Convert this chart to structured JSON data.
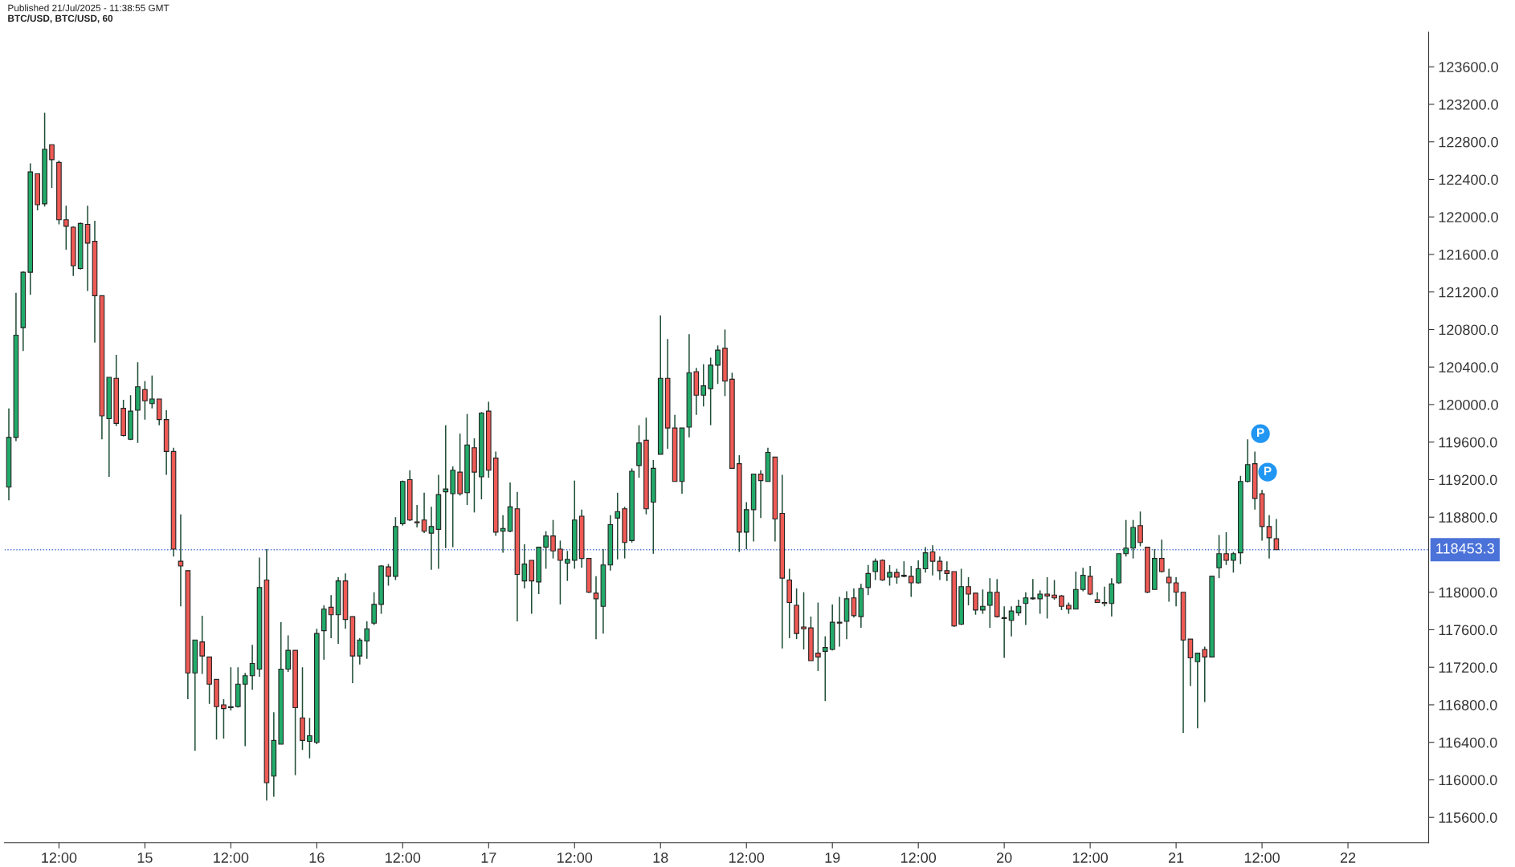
{
  "chart_data": {
    "type": "candlestick",
    "title": "BTC/USD, BTC/USD, 60",
    "annotations": [
      "Published 21/Jul/2025 - 11:38:55 GMT",
      {
        "text": "P",
        "x": "2025-07-21T11:00",
        "y": 119500
      },
      {
        "text": "P",
        "x": "2025-07-21T12:00",
        "y": 119090
      }
    ],
    "x": [
      "2025-07-14T05:00",
      "2025-07-14T06:00",
      "2025-07-14T07:00",
      "2025-07-14T08:00",
      "2025-07-14T09:00",
      "2025-07-14T10:00",
      "2025-07-14T11:00",
      "2025-07-14T12:00",
      "2025-07-14T13:00",
      "2025-07-14T14:00",
      "2025-07-14T15:00",
      "2025-07-14T16:00",
      "2025-07-14T17:00",
      "2025-07-14T18:00",
      "2025-07-14T19:00",
      "2025-07-14T20:00",
      "2025-07-14T21:00",
      "2025-07-14T22:00",
      "2025-07-14T23:00",
      "2025-07-15T00:00",
      "2025-07-15T01:00",
      "2025-07-15T02:00",
      "2025-07-15T03:00",
      "2025-07-15T04:00",
      "2025-07-15T05:00",
      "2025-07-15T06:00",
      "2025-07-15T07:00",
      "2025-07-15T08:00",
      "2025-07-15T09:00",
      "2025-07-15T10:00",
      "2025-07-15T11:00",
      "2025-07-15T12:00",
      "2025-07-15T13:00",
      "2025-07-15T14:00",
      "2025-07-15T15:00",
      "2025-07-15T16:00",
      "2025-07-15T17:00",
      "2025-07-15T18:00",
      "2025-07-15T19:00",
      "2025-07-15T20:00",
      "2025-07-15T21:00",
      "2025-07-15T22:00",
      "2025-07-15T23:00",
      "2025-07-16T00:00",
      "2025-07-16T01:00",
      "2025-07-16T02:00",
      "2025-07-16T03:00",
      "2025-07-16T04:00",
      "2025-07-16T05:00",
      "2025-07-16T06:00",
      "2025-07-16T07:00",
      "2025-07-16T08:00",
      "2025-07-16T09:00",
      "2025-07-16T10:00",
      "2025-07-16T11:00",
      "2025-07-16T12:00",
      "2025-07-16T13:00",
      "2025-07-16T14:00",
      "2025-07-16T15:00",
      "2025-07-16T16:00",
      "2025-07-16T17:00",
      "2025-07-16T18:00",
      "2025-07-16T19:00",
      "2025-07-16T20:00",
      "2025-07-16T21:00",
      "2025-07-16T22:00",
      "2025-07-16T23:00",
      "2025-07-17T00:00",
      "2025-07-17T01:00",
      "2025-07-17T02:00",
      "2025-07-17T03:00",
      "2025-07-17T04:00",
      "2025-07-17T05:00",
      "2025-07-17T06:00",
      "2025-07-17T07:00",
      "2025-07-17T08:00",
      "2025-07-17T09:00",
      "2025-07-17T10:00",
      "2025-07-17T11:00",
      "2025-07-17T12:00",
      "2025-07-17T13:00",
      "2025-07-17T14:00",
      "2025-07-17T15:00",
      "2025-07-17T16:00",
      "2025-07-17T17:00",
      "2025-07-17T18:00",
      "2025-07-17T19:00",
      "2025-07-17T20:00",
      "2025-07-17T21:00",
      "2025-07-17T22:00",
      "2025-07-17T23:00",
      "2025-07-18T00:00",
      "2025-07-18T01:00",
      "2025-07-18T02:00",
      "2025-07-18T03:00",
      "2025-07-18T04:00",
      "2025-07-18T05:00",
      "2025-07-18T06:00",
      "2025-07-18T07:00",
      "2025-07-18T08:00",
      "2025-07-18T09:00",
      "2025-07-18T10:00",
      "2025-07-18T11:00",
      "2025-07-18T12:00",
      "2025-07-18T13:00",
      "2025-07-18T14:00",
      "2025-07-18T15:00",
      "2025-07-18T16:00",
      "2025-07-18T17:00",
      "2025-07-18T18:00",
      "2025-07-18T19:00",
      "2025-07-18T20:00",
      "2025-07-18T21:00",
      "2025-07-18T22:00",
      "2025-07-18T23:00",
      "2025-07-19T00:00",
      "2025-07-19T01:00",
      "2025-07-19T02:00",
      "2025-07-19T03:00",
      "2025-07-19T04:00",
      "2025-07-19T05:00",
      "2025-07-19T06:00",
      "2025-07-19T07:00",
      "2025-07-19T08:00",
      "2025-07-19T09:00",
      "2025-07-19T10:00",
      "2025-07-19T11:00",
      "2025-07-19T12:00",
      "2025-07-19T13:00",
      "2025-07-19T14:00",
      "2025-07-19T15:00",
      "2025-07-19T16:00",
      "2025-07-19T17:00",
      "2025-07-19T18:00",
      "2025-07-19T19:00",
      "2025-07-19T20:00",
      "2025-07-19T21:00",
      "2025-07-19T22:00",
      "2025-07-19T23:00",
      "2025-07-20T00:00",
      "2025-07-20T01:00",
      "2025-07-20T02:00",
      "2025-07-20T03:00",
      "2025-07-20T04:00",
      "2025-07-20T05:00",
      "2025-07-20T06:00",
      "2025-07-20T07:00",
      "2025-07-20T08:00",
      "2025-07-20T09:00",
      "2025-07-20T10:00",
      "2025-07-20T11:00",
      "2025-07-20T12:00",
      "2025-07-20T13:00",
      "2025-07-20T14:00",
      "2025-07-20T15:00",
      "2025-07-20T16:00",
      "2025-07-20T17:00",
      "2025-07-20T18:00",
      "2025-07-20T19:00",
      "2025-07-20T20:00",
      "2025-07-20T21:00",
      "2025-07-20T22:00",
      "2025-07-20T23:00",
      "2025-07-21T00:00",
      "2025-07-21T01:00",
      "2025-07-21T02:00",
      "2025-07-21T03:00",
      "2025-07-21T04:00",
      "2025-07-21T05:00",
      "2025-07-21T06:00",
      "2025-07-21T07:00",
      "2025-07-21T08:00",
      "2025-07-21T09:00",
      "2025-07-21T10:00",
      "2025-07-21T11:00",
      "2025-07-21T12:00",
      "2025-07-21T13:00",
      "2025-07-21T14:00"
    ],
    "ohlc": [
      [
        119120,
        119960,
        118980,
        119650
      ],
      [
        119650,
        121190,
        119610,
        120740
      ],
      [
        120820,
        121420,
        120570,
        121410
      ],
      [
        121410,
        122570,
        121170,
        122480
      ],
      [
        122460,
        122460,
        122070,
        122130
      ],
      [
        122140,
        123110,
        122110,
        122720
      ],
      [
        122770,
        122770,
        122310,
        122610
      ],
      [
        122580,
        122600,
        121920,
        121970
      ],
      [
        121970,
        122120,
        121650,
        121900
      ],
      [
        121890,
        121900,
        121370,
        121480
      ],
      [
        121450,
        121940,
        121440,
        121930
      ],
      [
        121920,
        122120,
        121210,
        121720
      ],
      [
        121740,
        121960,
        120660,
        121160
      ],
      [
        121160,
        121160,
        119630,
        119880
      ],
      [
        119850,
        120290,
        119230,
        120290
      ],
      [
        120280,
        120530,
        119770,
        119800
      ],
      [
        119960,
        120050,
        119660,
        119670
      ],
      [
        119630,
        120100,
        119620,
        119930
      ],
      [
        119940,
        120450,
        119590,
        120190
      ],
      [
        120160,
        120250,
        119840,
        120040
      ],
      [
        120010,
        120310,
        119960,
        120060
      ],
      [
        120060,
        120060,
        119780,
        119840
      ],
      [
        119840,
        119940,
        119250,
        119500
      ],
      [
        119500,
        119540,
        118380,
        118460
      ],
      [
        118330,
        118830,
        117850,
        118280
      ],
      [
        118230,
        118230,
        116860,
        117140
      ],
      [
        117140,
        117490,
        116310,
        117490
      ],
      [
        117470,
        117750,
        117130,
        117320
      ],
      [
        117310,
        117310,
        116810,
        117020
      ],
      [
        117070,
        117070,
        116430,
        116780
      ],
      [
        116800,
        116860,
        116440,
        116760
      ],
      [
        116770,
        117200,
        116740,
        116780
      ],
      [
        116780,
        117200,
        116770,
        117020
      ],
      [
        117020,
        117140,
        116360,
        117110
      ],
      [
        117110,
        117440,
        116960,
        117240
      ],
      [
        117180,
        118370,
        117100,
        118050
      ],
      [
        118130,
        118460,
        115780,
        115970
      ],
      [
        116040,
        116720,
        115820,
        116420
      ],
      [
        116380,
        117680,
        116380,
        117180
      ],
      [
        117180,
        117540,
        117150,
        117380
      ],
      [
        117380,
        117380,
        116050,
        116770
      ],
      [
        116660,
        117200,
        116320,
        116420
      ],
      [
        116410,
        116660,
        116230,
        116470
      ],
      [
        116400,
        117610,
        116380,
        117560
      ],
      [
        117590,
        117860,
        117280,
        117820
      ],
      [
        117840,
        117970,
        117510,
        117760
      ],
      [
        117760,
        118160,
        117450,
        118120
      ],
      [
        118120,
        118200,
        117610,
        117710
      ],
      [
        117740,
        117740,
        117030,
        117320
      ],
      [
        117320,
        117510,
        117230,
        117490
      ],
      [
        117480,
        117690,
        117290,
        117610
      ],
      [
        117670,
        118000,
        117650,
        117870
      ],
      [
        117870,
        118290,
        117770,
        118280
      ],
      [
        118270,
        118300,
        118070,
        118170
      ],
      [
        118170,
        118800,
        118130,
        118700
      ],
      [
        118730,
        119190,
        118710,
        119180
      ],
      [
        119200,
        119300,
        118760,
        118770
      ],
      [
        118750,
        118930,
        118690,
        118740
      ],
      [
        118770,
        119060,
        118630,
        118650
      ],
      [
        118630,
        118910,
        118240,
        118700
      ],
      [
        118670,
        119250,
        118250,
        119040
      ],
      [
        119070,
        119780,
        118470,
        119100
      ],
      [
        119050,
        119340,
        118480,
        119300
      ],
      [
        119280,
        119690,
        119030,
        119050
      ],
      [
        119060,
        119900,
        118930,
        119570
      ],
      [
        119540,
        119640,
        118850,
        119280
      ],
      [
        119230,
        119920,
        118990,
        119910
      ],
      [
        119930,
        120030,
        119220,
        119300
      ],
      [
        119430,
        119500,
        118600,
        118640
      ],
      [
        118650,
        118820,
        118420,
        118680
      ],
      [
        118650,
        119170,
        118640,
        118910
      ],
      [
        118890,
        119070,
        117690,
        118190
      ],
      [
        118120,
        118510,
        118040,
        118300
      ],
      [
        118340,
        118340,
        117770,
        118120
      ],
      [
        118110,
        118480,
        117980,
        118480
      ],
      [
        118480,
        118650,
        118250,
        118600
      ],
      [
        118600,
        118770,
        118360,
        118440
      ],
      [
        118460,
        118550,
        117870,
        118340
      ],
      [
        118310,
        118440,
        118120,
        118350
      ],
      [
        118340,
        119190,
        118250,
        118770
      ],
      [
        118810,
        118880,
        118260,
        118360
      ],
      [
        118360,
        118360,
        117990,
        118000
      ],
      [
        117990,
        118170,
        117500,
        117930
      ],
      [
        117850,
        118460,
        117560,
        118290
      ],
      [
        118290,
        118820,
        118230,
        118720
      ],
      [
        118790,
        119060,
        118350,
        118860
      ],
      [
        118890,
        118910,
        118360,
        118530
      ],
      [
        118550,
        119320,
        118530,
        119290
      ],
      [
        119350,
        119780,
        119220,
        119590
      ],
      [
        119620,
        119860,
        118830,
        118890
      ],
      [
        118960,
        119410,
        118410,
        119320
      ],
      [
        119470,
        120950,
        119470,
        120280
      ],
      [
        120280,
        120700,
        119530,
        119750
      ],
      [
        119750,
        119890,
        119180,
        119180
      ],
      [
        119180,
        119750,
        119050,
        119750
      ],
      [
        119760,
        120750,
        119650,
        120340
      ],
      [
        120350,
        120390,
        119890,
        120100
      ],
      [
        120100,
        120430,
        119980,
        120200
      ],
      [
        120170,
        120500,
        119780,
        120420
      ],
      [
        120420,
        120630,
        120220,
        120580
      ],
      [
        120600,
        120800,
        120090,
        120250
      ],
      [
        120270,
        120340,
        119320,
        119320
      ],
      [
        119370,
        119460,
        118430,
        118640
      ],
      [
        118640,
        118960,
        118460,
        118880
      ],
      [
        118880,
        119260,
        118540,
        119260
      ],
      [
        119260,
        119300,
        118790,
        119190
      ],
      [
        119180,
        119540,
        119180,
        119490
      ],
      [
        119440,
        119440,
        118540,
        118780
      ],
      [
        118840,
        119250,
        117400,
        118150
      ],
      [
        118130,
        118250,
        117510,
        117890
      ],
      [
        117860,
        118040,
        117500,
        117560
      ],
      [
        117630,
        118000,
        117390,
        117610
      ],
      [
        117620,
        117740,
        117270,
        117270
      ],
      [
        117350,
        117890,
        117160,
        117310
      ],
      [
        117370,
        117530,
        116840,
        117410
      ],
      [
        117390,
        117870,
        117380,
        117680
      ],
      [
        117680,
        117950,
        117420,
        117670
      ],
      [
        117690,
        118010,
        117500,
        117930
      ],
      [
        117940,
        118040,
        117730,
        117750
      ],
      [
        117740,
        118090,
        117620,
        118040
      ],
      [
        118050,
        118290,
        117970,
        118200
      ],
      [
        118220,
        118360,
        118130,
        118330
      ],
      [
        118340,
        118350,
        118120,
        118130
      ],
      [
        118160,
        118290,
        118070,
        118210
      ],
      [
        118210,
        118250,
        118090,
        118160
      ],
      [
        118180,
        118330,
        118160,
        118170
      ],
      [
        118170,
        118280,
        117950,
        118100
      ],
      [
        118100,
        118340,
        118090,
        118250
      ],
      [
        118250,
        118480,
        118210,
        118420
      ],
      [
        118430,
        118500,
        118180,
        118330
      ],
      [
        118330,
        118380,
        118130,
        118230
      ],
      [
        118230,
        118330,
        118120,
        118200
      ],
      [
        118220,
        118220,
        117630,
        117640
      ],
      [
        117660,
        118250,
        117650,
        118060
      ],
      [
        118060,
        118160,
        117860,
        117980
      ],
      [
        117990,
        117990,
        117760,
        117810
      ],
      [
        117810,
        118030,
        117770,
        117850
      ],
      [
        117860,
        118150,
        117620,
        118000
      ],
      [
        118000,
        118140,
        117730,
        117740
      ],
      [
        117730,
        117850,
        117300,
        117720
      ],
      [
        117700,
        117850,
        117530,
        117800
      ],
      [
        117780,
        117920,
        117750,
        117850
      ],
      [
        117880,
        118000,
        117650,
        117940
      ],
      [
        117930,
        118140,
        117920,
        117940
      ],
      [
        117930,
        118020,
        117770,
        117980
      ],
      [
        117980,
        118160,
        117720,
        117960
      ],
      [
        117970,
        118130,
        117920,
        117940
      ],
      [
        117960,
        117970,
        117810,
        117850
      ],
      [
        117860,
        117890,
        117770,
        117820
      ],
      [
        117820,
        118220,
        117820,
        118030
      ],
      [
        118030,
        118260,
        118010,
        118180
      ],
      [
        118170,
        118280,
        117970,
        117980
      ],
      [
        117920,
        118000,
        117890,
        117890
      ],
      [
        117890,
        118060,
        117850,
        117880
      ],
      [
        117880,
        118150,
        117740,
        118090
      ],
      [
        118100,
        118410,
        118090,
        118410
      ],
      [
        118410,
        118770,
        118380,
        118470
      ],
      [
        118470,
        118770,
        118360,
        118690
      ],
      [
        118710,
        118860,
        118490,
        118530
      ],
      [
        118480,
        118480,
        117990,
        118000
      ],
      [
        118030,
        118460,
        118030,
        118360
      ],
      [
        118360,
        118560,
        118210,
        118220
      ],
      [
        118160,
        118250,
        117900,
        118100
      ],
      [
        118100,
        118160,
        117850,
        118000
      ],
      [
        118000,
        118000,
        116500,
        117490
      ],
      [
        117500,
        117500,
        117000,
        117300
      ],
      [
        117260,
        117350,
        116550,
        117350
      ],
      [
        117390,
        117420,
        116830,
        117310
      ],
      [
        117310,
        118170,
        117310,
        118170
      ],
      [
        118260,
        118610,
        118150,
        118410
      ],
      [
        118410,
        118640,
        118290,
        118340
      ],
      [
        118340,
        118430,
        118210,
        118410
      ],
      [
        118420,
        119240,
        118300,
        119180
      ],
      [
        119180,
        119630,
        119170,
        119360
      ],
      [
        119370,
        119500,
        118880,
        119000
      ],
      [
        119050,
        119090,
        118550,
        118700
      ],
      [
        118700,
        118820,
        118360,
        118580
      ],
      [
        118570,
        118780,
        118453.3,
        118453.3
      ]
    ],
    "colors": [
      "#22ab6a",
      "#22ab6a",
      "#22ab6a",
      "#22ab6a",
      "#ef5a55",
      "#22ab6a",
      "#ef5a55",
      "#ef5a55",
      "#ef5a55",
      "#ef5a55",
      "#22ab6a",
      "#ef5a55",
      "#ef5a55",
      "#ef5a55",
      "#22ab6a",
      "#ef5a55",
      "#ef5a55",
      "#22ab6a",
      "#22ab6a",
      "#ef5a55",
      "#22ab6a",
      "#ef5a55",
      "#ef5a55",
      "#ef5a55",
      "#ef5a55",
      "#ef5a55",
      "#22ab6a",
      "#ef5a55",
      "#ef5a55",
      "#ef5a55",
      "#ef5a55",
      "#22ab6a",
      "#22ab6a",
      "#22ab6a",
      "#22ab6a",
      "#22ab6a",
      "#ef5a55",
      "#22ab6a",
      "#22ab6a",
      "#22ab6a",
      "#ef5a55",
      "#ef5a55",
      "#22ab6a",
      "#22ab6a",
      "#22ab6a",
      "#ef5a55",
      "#22ab6a",
      "#ef5a55",
      "#ef5a55",
      "#22ab6a",
      "#22ab6a",
      "#22ab6a",
      "#22ab6a",
      "#ef5a55",
      "#22ab6a",
      "#22ab6a",
      "#ef5a55",
      "#ef5a55",
      "#ef5a55",
      "#22ab6a",
      "#22ab6a",
      "#22ab6a",
      "#22ab6a",
      "#ef5a55",
      "#22ab6a",
      "#ef5a55",
      "#22ab6a",
      "#ef5a55",
      "#ef5a55",
      "#22ab6a",
      "#22ab6a",
      "#ef5a55",
      "#22ab6a",
      "#ef5a55",
      "#22ab6a",
      "#22ab6a",
      "#ef5a55",
      "#ef5a55",
      "#22ab6a",
      "#22ab6a",
      "#ef5a55",
      "#ef5a55",
      "#ef5a55",
      "#22ab6a",
      "#22ab6a",
      "#22ab6a",
      "#ef5a55",
      "#22ab6a",
      "#22ab6a",
      "#ef5a55",
      "#22ab6a",
      "#22ab6a",
      "#ef5a55",
      "#ef5a55",
      "#22ab6a",
      "#22ab6a",
      "#ef5a55",
      "#22ab6a",
      "#22ab6a",
      "#22ab6a",
      "#ef5a55",
      "#ef5a55",
      "#ef5a55",
      "#22ab6a",
      "#22ab6a",
      "#ef5a55",
      "#22ab6a",
      "#ef5a55",
      "#ef5a55",
      "#ef5a55",
      "#ef5a55",
      "#ef5a55",
      "#ef5a55",
      "#ef5a55",
      "#22ab6a",
      "#22ab6a",
      "#ef5a55",
      "#22ab6a",
      "#ef5a55",
      "#22ab6a",
      "#22ab6a",
      "#22ab6a",
      "#ef5a55",
      "#22ab6a",
      "#ef5a55",
      "#ef5a55",
      "#ef5a55",
      "#22ab6a",
      "#22ab6a",
      "#ef5a55",
      "#ef5a55",
      "#ef5a55",
      "#ef5a55",
      "#22ab6a",
      "#ef5a55",
      "#ef5a55",
      "#22ab6a",
      "#22ab6a",
      "#ef5a55",
      "#ef5a55",
      "#22ab6a",
      "#22ab6a",
      "#22ab6a",
      "#22ab6a",
      "#22ab6a",
      "#ef5a55",
      "#ef5a55",
      "#ef5a55",
      "#ef5a55",
      "#22ab6a",
      "#22ab6a",
      "#ef5a55",
      "#ef5a55",
      "#ef5a55",
      "#22ab6a",
      "#22ab6a",
      "#22ab6a",
      "#22ab6a",
      "#ef5a55",
      "#ef5a55",
      "#22ab6a",
      "#ef5a55",
      "#ef5a55",
      "#ef5a55",
      "#ef5a55",
      "#ef5a55",
      "#22ab6a",
      "#ef5a55",
      "#22ab6a",
      "#22ab6a",
      "#ef5a55",
      "#22ab6a",
      "#22ab6a",
      "#22ab6a",
      "#ef5a55",
      "#ef5a55",
      "#ef5a55",
      "#ef5a55"
    ],
    "xlim": [
      "2025-07-14T04:24",
      "2025-07-22T11:16"
    ],
    "xticks": [
      {
        "value": "2025-07-14T12:00",
        "label": "12:00"
      },
      {
        "value": "2025-07-15",
        "label": "15"
      },
      {
        "value": "2025-07-15T12:00",
        "label": "12:00"
      },
      {
        "value": "2025-07-16",
        "label": "16"
      },
      {
        "value": "2025-07-16T12:00",
        "label": "12:00"
      },
      {
        "value": "2025-07-17",
        "label": "17"
      },
      {
        "value": "2025-07-17T12:00",
        "label": "12:00"
      },
      {
        "value": "2025-07-18",
        "label": "18"
      },
      {
        "value": "2025-07-18T12:00",
        "label": "12:00"
      },
      {
        "value": "2025-07-19",
        "label": "19"
      },
      {
        "value": "2025-07-19T12:00",
        "label": "12:00"
      },
      {
        "value": "2025-07-20",
        "label": "20"
      },
      {
        "value": "2025-07-20T12:00",
        "label": "12:00"
      },
      {
        "value": "2025-07-21",
        "label": "21"
      },
      {
        "value": "2025-07-21T12:00",
        "label": "12:00"
      },
      {
        "value": "2025-07-22",
        "label": "22"
      }
    ],
    "ylim": [
      115330,
      123970
    ],
    "yticks": [
      {
        "value": 115600,
        "label": "115600.0"
      },
      {
        "value": 116000,
        "label": "116000.0"
      },
      {
        "value": 116400,
        "label": "116400.0"
      },
      {
        "value": 116800,
        "label": "116800.0"
      },
      {
        "value": 117200,
        "label": "117200.0"
      },
      {
        "value": 117600,
        "label": "117600.0"
      },
      {
        "value": 118000,
        "label": "118000.0"
      },
      {
        "value": 118800,
        "label": "118800.0"
      },
      {
        "value": 119200,
        "label": "119200.0"
      },
      {
        "value": 119600,
        "label": "119600.0"
      },
      {
        "value": 120000,
        "label": "120000.0"
      },
      {
        "value": 120400,
        "label": "120400.0"
      },
      {
        "value": 120800,
        "label": "120800.0"
      },
      {
        "value": 121200,
        "label": "121200.0"
      },
      {
        "value": 121600,
        "label": "121600.0"
      },
      {
        "value": 122000,
        "label": "122000.0"
      },
      {
        "value": 122400,
        "label": "122400.0"
      },
      {
        "value": 122800,
        "label": "122800.0"
      },
      {
        "value": 123200,
        "label": "123200.0"
      },
      {
        "value": 123600,
        "label": "123600.0"
      }
    ],
    "ref_lines": [
      {
        "axis": "y",
        "value": 118453.3,
        "label": "118453.3",
        "color": "#4a72d8",
        "line_style": "dotted"
      }
    ],
    "grid": false
  }
}
